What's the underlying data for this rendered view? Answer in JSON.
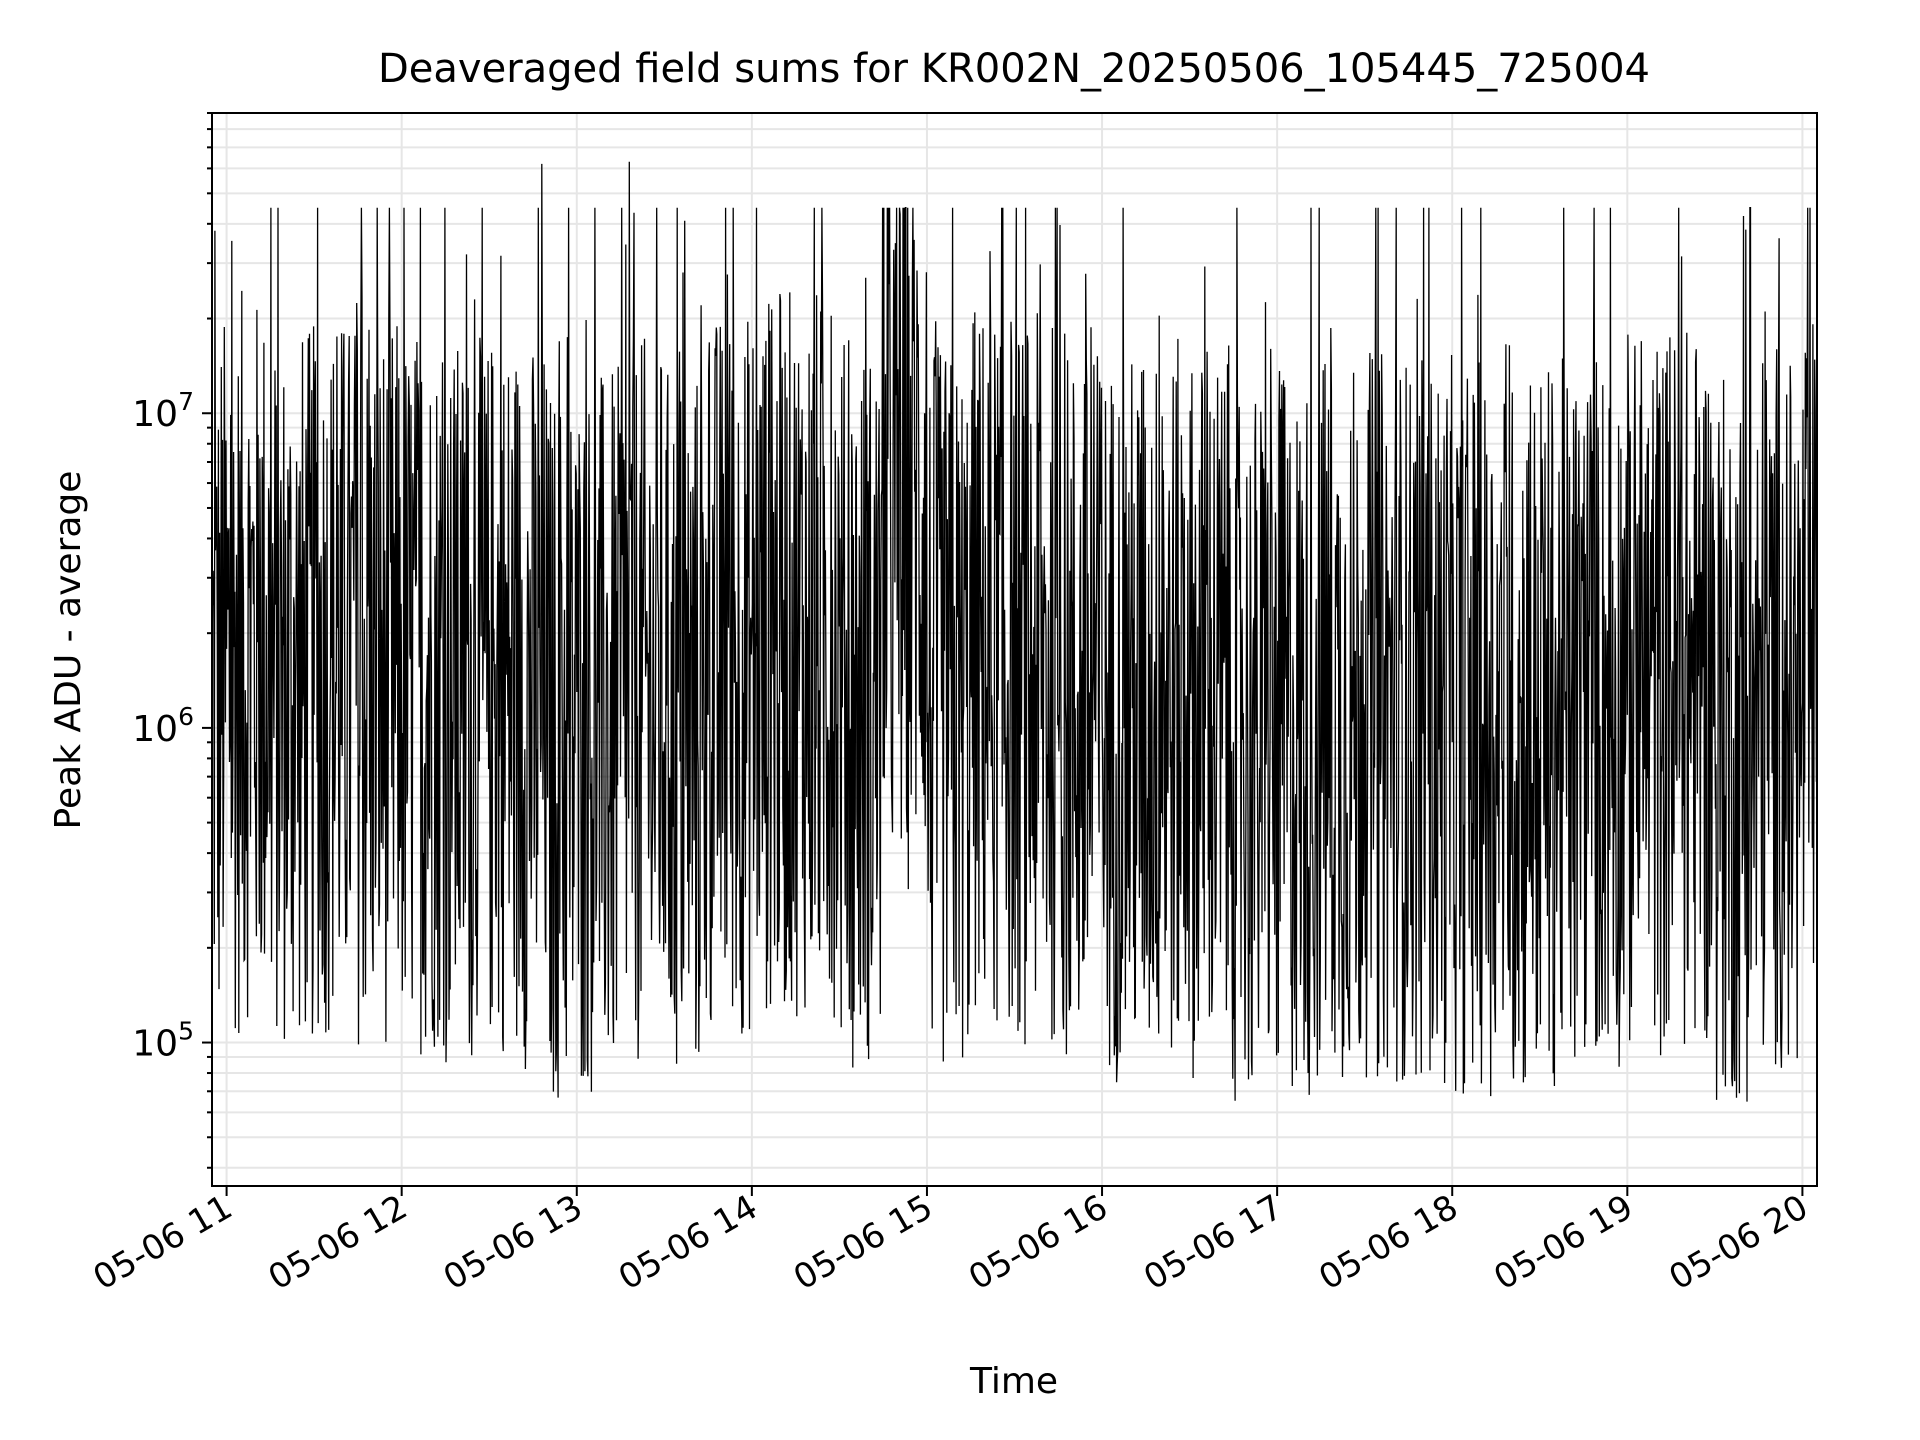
{
  "chart_data": {
    "type": "line",
    "title": "Deaveraged field sums for KR002N_20250506_105445_725004",
    "xlabel": "Time",
    "ylabel": "Peak ADU - average",
    "yscale": "log",
    "ylim": [
      35000,
      90000000
    ],
    "xlim": [
      "05-06 10:55",
      "05-06 20:05"
    ],
    "grid": true,
    "line_color": "#000000",
    "grid_color": "#e6e6e6",
    "x_ticks": [
      "05-06 11",
      "05-06 12",
      "05-06 13",
      "05-06 14",
      "05-06 15",
      "05-06 16",
      "05-06 17",
      "05-06 18",
      "05-06 19",
      "05-06 20"
    ],
    "y_ticks": [
      {
        "base": "10",
        "exp": "5",
        "value": 100000
      },
      {
        "base": "10",
        "exp": "6",
        "value": 1000000
      },
      {
        "base": "10",
        "exp": "7",
        "value": 10000000
      }
    ],
    "series": [
      {
        "values_note_omitted": true,
        "x": [
          "05-06 10:55",
          "05-06 10:56",
          "05-06 10:58",
          "05-06 11:05",
          "05-06 11:15",
          "05-06 11:30",
          "05-06 11:45",
          "05-06 12:00",
          "05-06 12:15",
          "05-06 12:25",
          "05-06 12:30",
          "05-06 12:40",
          "05-06 12:48",
          "05-06 12:50",
          "05-06 13:00",
          "05-06 13:15",
          "05-06 13:18",
          "05-06 13:30",
          "05-06 13:45",
          "05-06 14:00",
          "05-06 14:15",
          "05-06 14:30",
          "05-06 14:45",
          "05-06 14:55",
          "05-06 15:00",
          "05-06 15:15",
          "05-06 15:30",
          "05-06 15:45",
          "05-06 16:00",
          "05-06 16:15",
          "05-06 16:30",
          "05-06 16:45",
          "05-06 17:00",
          "05-06 17:15",
          "05-06 17:30",
          "05-06 17:45",
          "05-06 18:00",
          "05-06 18:15",
          "05-06 18:30",
          "05-06 18:45",
          "05-06 19:00",
          "05-06 19:15",
          "05-06 19:30",
          "05-06 19:45",
          "05-06 19:52",
          "05-06 19:55",
          "05-06 20:00",
          "05-06 20:05"
        ],
        "values": [
          1500000,
          38000000,
          1200000,
          1800000,
          1600000,
          1100000,
          2000000,
          1000000,
          1800000,
          23000000,
          2200000,
          800000,
          62000000,
          600000,
          1300000,
          700000,
          63000000,
          900000,
          1100000,
          2000000,
          1500000,
          2100000,
          700000,
          27000000,
          900000,
          1400000,
          1800000,
          1100000,
          1200000,
          1000000,
          1400000,
          900000,
          800000,
          1100000,
          1000000,
          1200000,
          900000,
          1100000,
          800000,
          1300000,
          1100000,
          1500000,
          1200000,
          700000,
          36000000,
          900000,
          1200000,
          1800000
        ]
      }
    ]
  }
}
